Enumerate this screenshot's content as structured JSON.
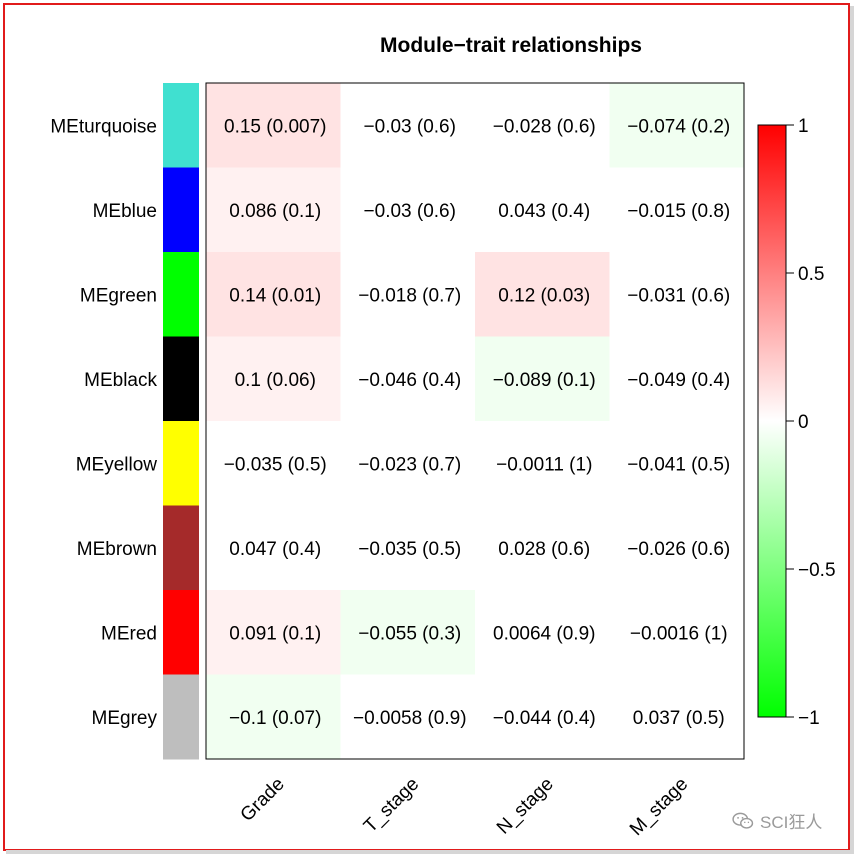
{
  "chart_data": {
    "type": "heatmap",
    "title": "Module−trait relationships",
    "columns": [
      "Grade",
      "T_stage",
      "N_stage",
      "M_stage"
    ],
    "rows": [
      {
        "name": "MEturquoise",
        "color": "#40e0d0",
        "values": [
          0.15,
          -0.03,
          -0.028,
          -0.074
        ],
        "labels": [
          "0.15 (0.007)",
          "−0.03 (0.6)",
          "−0.028 (0.6)",
          "−0.074 (0.2)"
        ]
      },
      {
        "name": "MEblue",
        "color": "#0000ff",
        "values": [
          0.086,
          -0.03,
          0.043,
          -0.015
        ],
        "labels": [
          "0.086 (0.1)",
          "−0.03 (0.6)",
          "0.043 (0.4)",
          "−0.015 (0.8)"
        ]
      },
      {
        "name": "MEgreen",
        "color": "#00ff00",
        "values": [
          0.14,
          -0.018,
          0.12,
          -0.031
        ],
        "labels": [
          "0.14 (0.01)",
          "−0.018 (0.7)",
          "0.12 (0.03)",
          "−0.031 (0.6)"
        ]
      },
      {
        "name": "MEblack",
        "color": "#000000",
        "values": [
          0.1,
          -0.046,
          -0.089,
          -0.049
        ],
        "labels": [
          "0.1 (0.06)",
          "−0.046 (0.4)",
          "−0.089 (0.1)",
          "−0.049 (0.4)"
        ]
      },
      {
        "name": "MEyellow",
        "color": "#ffff00",
        "values": [
          -0.035,
          -0.023,
          -0.0011,
          -0.041
        ],
        "labels": [
          "−0.035 (0.5)",
          "−0.023 (0.7)",
          "−0.0011 (1)",
          "−0.041 (0.5)"
        ]
      },
      {
        "name": "MEbrown",
        "color": "#a52a2a",
        "values": [
          0.047,
          -0.035,
          0.028,
          -0.026
        ],
        "labels": [
          "0.047 (0.4)",
          "−0.035 (0.5)",
          "0.028 (0.6)",
          "−0.026 (0.6)"
        ]
      },
      {
        "name": "MEred",
        "color": "#ff0000",
        "values": [
          0.091,
          -0.055,
          0.0064,
          -0.0016
        ],
        "labels": [
          "0.091 (0.1)",
          "−0.055 (0.3)",
          "0.0064 (0.9)",
          "−0.0016 (1)"
        ]
      },
      {
        "name": "MEgrey",
        "color": "#bebebe",
        "values": [
          -0.1,
          -0.0058,
          -0.044,
          0.037
        ],
        "labels": [
          "−0.1 (0.07)",
          "−0.0058 (0.9)",
          "−0.044 (0.4)",
          "0.037 (0.5)"
        ]
      }
    ],
    "colorscale": {
      "low": "#00ff00",
      "mid": "#ffffff",
      "high": "#ff0000",
      "range": [
        -1,
        1
      ]
    },
    "legend": {
      "position": "right",
      "ticks": [
        1,
        0.5,
        0,
        -0.5,
        -1
      ],
      "tick_labels": [
        "1",
        "0.5",
        "0",
        "−0.5",
        "−1"
      ]
    }
  },
  "watermark": {
    "text": "SCI狂人",
    "icon": "wechat-icon"
  }
}
